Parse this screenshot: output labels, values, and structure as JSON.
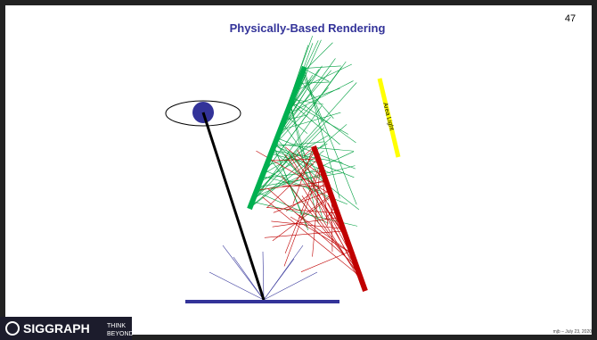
{
  "slide": {
    "title": "Physically-Based Rendering",
    "page_number": "47",
    "labels": {
      "area_light": "Area Light"
    },
    "footer": {
      "logo": "SIGGRAPH",
      "tagline_top": "THINK",
      "tagline_bottom": "BEYOND",
      "credit": "mjb – July 23, 2020"
    }
  }
}
